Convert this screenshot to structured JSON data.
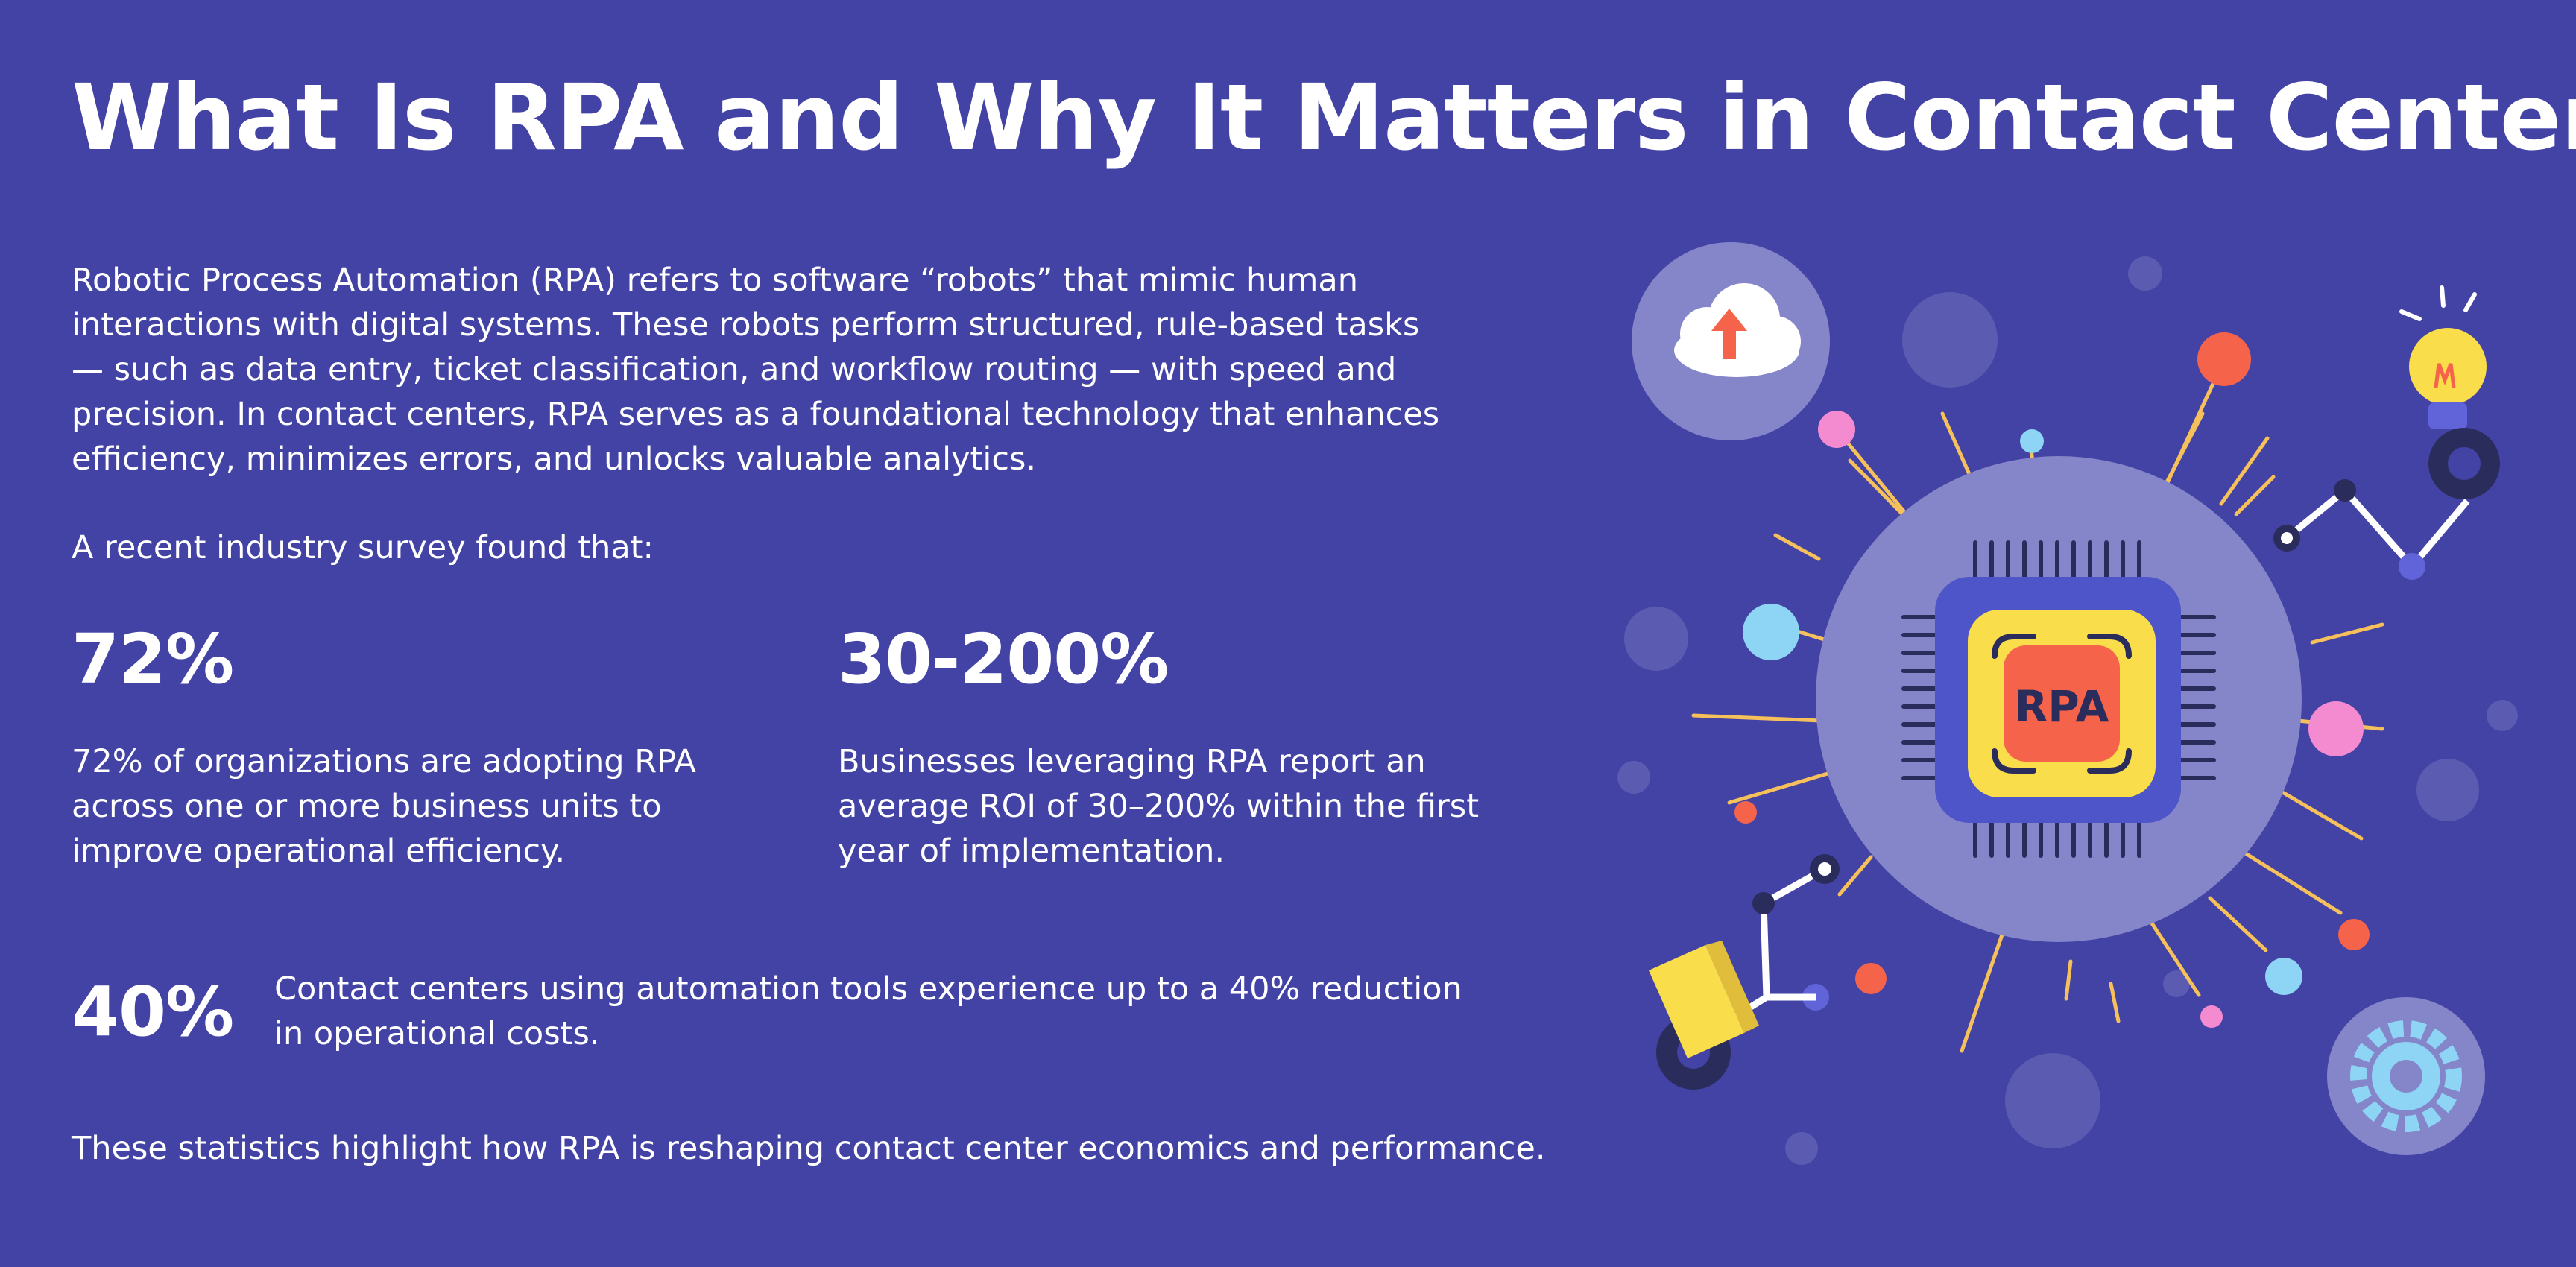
{
  "title": "What Is RPA and Why It Matters in Contact Centers",
  "intro": {
    "lines": [
      "Robotic Process Automation (RPA) refers to software “robots” that mimic human",
      "interactions with digital systems. These robots perform structured, rule-based tasks",
      "— such as data entry, ticket classification, and workflow routing — with speed and",
      "precision. In contact centers, RPA serves as a foundational technology that enhances",
      "efficiency, minimizes errors, and unlocks valuable analytics."
    ]
  },
  "survey_lead": "A recent industry survey found that:",
  "stats": [
    {
      "value": "72%",
      "desc_lines": [
        "72% of organizations are adopting RPA",
        "across one or more business units to",
        "improve operational efficiency."
      ]
    },
    {
      "value": "30-200%",
      "desc_lines": [
        "Businesses leveraging RPA report an",
        "average ROI of 30–200% within the first",
        "year of implementation."
      ]
    },
    {
      "value": "40%",
      "desc_lines": [
        "Contact centers using automation tools experience up to a 40% reduction",
        "in operational costs."
      ]
    }
  ],
  "closing": "These statistics highlight how RPA is reshaping contact center economics and performance.",
  "illustration": {
    "chip_label": "RPA",
    "icons": [
      "cloud-upload-icon",
      "lightbulb-icon",
      "gear-icon",
      "robotic-arm-icon",
      "processor-chip-icon"
    ],
    "colors": {
      "background": "#4343a5",
      "halo": "#8585c9",
      "chip_board": "#4e55c8",
      "chip_frame": "#f9dd4a",
      "chip_core": "#f5644a",
      "chip_text": "#2a2c5c",
      "pins": "#2a2c5c",
      "rays": "#f6c15a"
    }
  }
}
